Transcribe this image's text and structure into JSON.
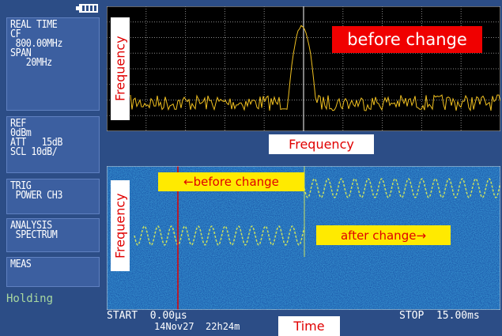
{
  "status": {
    "battery_icon": true
  },
  "side_panel": {
    "buttons": [
      {
        "lines": [
          "REAL TIME",
          "CF",
          " 800.00MHz",
          "SPAN",
          "   20MHz"
        ]
      },
      {
        "lines": [
          "REF",
          "0dBm",
          "ATT   15dB",
          "SCL 10dB/"
        ]
      },
      {
        "lines": [
          "TRIG",
          " POWER CH3"
        ]
      },
      {
        "lines": [
          "ANALYSIS",
          " SPECTRUM"
        ]
      },
      {
        "lines": [
          "MEAS"
        ]
      }
    ],
    "status_text": "Holding"
  },
  "spectrum": {
    "y_axis_label": "Frequency",
    "x_axis_label": "Frequency",
    "annotation": "before change"
  },
  "spectrogram": {
    "y_axis_label": "Frequency",
    "annotation_before": "←before change",
    "annotation_after": "after change→"
  },
  "footer": {
    "start": "START  0.00µs",
    "date": "14Nov27  22h24m",
    "stop": "STOP  15.00ms",
    "time_label": "Time"
  }
}
